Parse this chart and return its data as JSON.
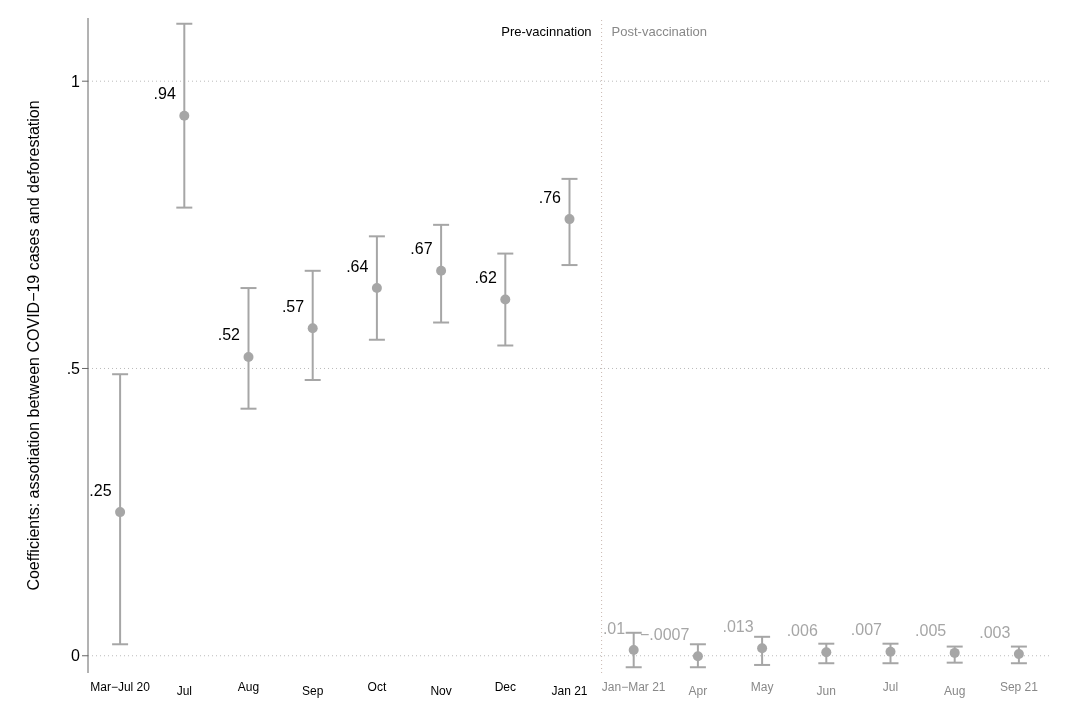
{
  "chart_data": {
    "type": "scatter",
    "ylabel": "Coefficients: assotiation between COVID−19 cases and deforestation",
    "categories": [
      "Mar−Jul 20",
      "Jul",
      "Aug",
      "Sep",
      "Oct",
      "Nov",
      "Dec",
      "Jan 21",
      "Jan−Mar 21",
      "Apr",
      "May",
      "Jun",
      "Jul",
      "Aug",
      "Sep 21"
    ],
    "series": [
      {
        "color": "#a6a6a6",
        "values": [
          0.25,
          0.94,
          0.52,
          0.57,
          0.64,
          0.67,
          0.62,
          0.76,
          null,
          null,
          null,
          null,
          null,
          null,
          null
        ],
        "value_labels": [
          ".25",
          ".94",
          ".52",
          ".57",
          ".64",
          ".67",
          ".62",
          ".76",
          null,
          null,
          null,
          null,
          null,
          null,
          null
        ],
        "errors": [
          [
            0.02,
            0.49
          ],
          [
            0.78,
            1.1
          ],
          [
            0.43,
            0.64
          ],
          [
            0.48,
            0.67
          ],
          [
            0.55,
            0.73
          ],
          [
            0.58,
            0.75
          ],
          [
            0.54,
            0.7
          ],
          [
            0.68,
            0.83
          ],
          null,
          null,
          null,
          null,
          null,
          null,
          null
        ]
      },
      {
        "color": "#a6a6a6",
        "values": [
          null,
          null,
          null,
          null,
          null,
          null,
          null,
          null,
          0.01,
          -0.0007,
          0.013,
          0.006,
          0.007,
          0.005,
          0.003
        ],
        "value_labels": [
          null,
          null,
          null,
          null,
          null,
          null,
          null,
          null,
          ".01",
          "−.0007",
          ".013",
          ".006",
          ".007",
          ".005",
          ".003"
        ],
        "errors": [
          null,
          null,
          null,
          null,
          null,
          null,
          null,
          null,
          [
            -0.02,
            0.04
          ],
          [
            -0.02,
            0.02
          ],
          [
            -0.016,
            0.033
          ],
          [
            -0.013,
            0.021
          ],
          [
            -0.013,
            0.021
          ],
          [
            -0.012,
            0.016
          ],
          [
            -0.013,
            0.016
          ]
        ]
      }
    ],
    "ylim": [
      -0.03,
      1.11
    ],
    "yticks": [
      0,
      {
        "value": 0.5,
        "label": ".5"
      },
      1
    ],
    "grid": "y",
    "marker": "circle",
    "legend": false,
    "ref_lines": [
      {
        "axis": "x",
        "value": "Jan−Mar 21",
        "label": "Post-vaccination",
        "color": "#c8b8b0",
        "line_style": "dotted"
      }
    ],
    "annotations": [
      "Pre-vacinnation"
    ]
  }
}
